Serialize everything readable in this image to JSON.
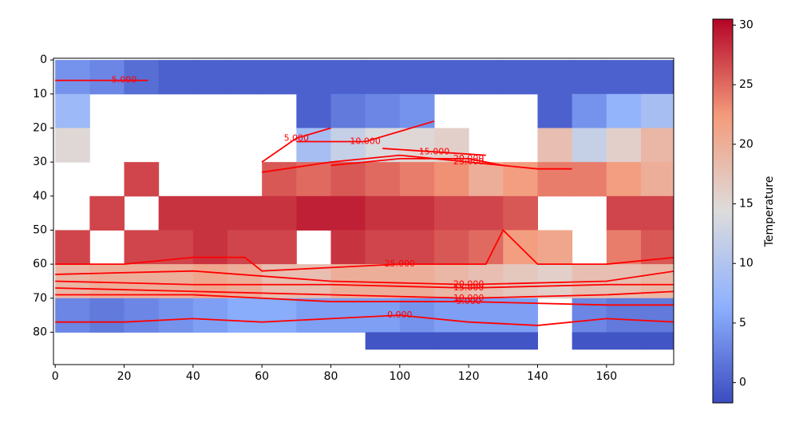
{
  "chart_data": {
    "type": "heatmap",
    "x_edges": [
      0,
      10,
      20,
      30,
      40,
      50,
      60,
      70,
      80,
      90,
      100,
      110,
      120,
      130,
      140,
      150,
      160,
      170,
      180
    ],
    "y_edges": [
      0,
      10,
      20,
      30,
      40,
      50,
      60,
      70,
      80,
      85
    ],
    "values": [
      [
        4,
        3,
        1,
        0,
        0,
        0,
        0,
        0,
        0,
        0,
        0,
        0,
        0,
        0,
        0,
        0,
        0,
        0
      ],
      [
        8,
        null,
        null,
        null,
        null,
        null,
        null,
        0,
        2,
        3,
        4,
        null,
        null,
        null,
        0,
        4,
        7,
        9
      ],
      [
        15,
        null,
        null,
        null,
        null,
        null,
        null,
        9,
        12,
        14,
        15,
        16,
        null,
        null,
        18,
        12,
        16,
        19
      ],
      [
        null,
        null,
        27,
        null,
        null,
        null,
        26,
        25,
        26,
        25,
        24,
        23,
        20,
        22,
        24,
        24,
        22,
        20
      ],
      [
        null,
        27,
        null,
        28,
        28,
        28,
        28,
        29,
        29,
        28,
        28,
        27,
        27,
        26,
        null,
        null,
        27,
        27
      ],
      [
        27,
        null,
        27,
        27,
        28,
        27,
        27,
        null,
        28,
        27,
        27,
        26,
        25,
        22,
        21,
        null,
        24,
        26
      ],
      [
        19,
        20,
        20,
        20,
        21,
        20,
        18,
        18,
        20,
        20,
        20,
        19,
        18,
        17,
        16,
        18,
        18,
        19
      ],
      [
        3,
        2,
        3,
        4,
        5,
        6,
        6,
        5,
        5,
        5,
        4,
        5,
        5,
        5,
        null,
        3,
        2,
        2
      ],
      [
        null,
        null,
        null,
        null,
        null,
        null,
        null,
        null,
        null,
        -1,
        -1,
        -1,
        -1,
        -1,
        null,
        -1,
        -1,
        -1
      ]
    ],
    "xlim": [
      -0.5,
      179.5
    ],
    "ylim": [
      89.5,
      -0.5
    ],
    "xticks": [
      0,
      20,
      40,
      60,
      80,
      100,
      120,
      140,
      160
    ],
    "yticks": [
      0,
      10,
      20,
      30,
      40,
      50,
      60,
      70,
      80
    ],
    "colormap": [
      "#3b4cc0",
      "#8db0fe",
      "#dddcdc",
      "#f49a7b",
      "#b40426"
    ],
    "clim": [
      -1.7,
      30.5
    ],
    "cticks": [
      0,
      5,
      10,
      15,
      20,
      25,
      30
    ],
    "colorbar_label": "Temperature",
    "contour_color": "#ff0000",
    "contours": [
      {
        "level": {
          "value": 0,
          "label": "0.000"
        },
        "x": [
          0,
          20,
          40,
          60,
          80,
          100,
          120,
          140,
          160,
          180
        ],
        "y": [
          77,
          77,
          76,
          77,
          76,
          75,
          77,
          78,
          76,
          77
        ]
      },
      {
        "level": {
          "value": 5,
          "label": "5.000"
        },
        "x": [
          0,
          40,
          80,
          120,
          160,
          180
        ],
        "y": [
          69,
          69,
          71,
          71,
          72,
          72
        ]
      },
      {
        "level": {
          "value": 10,
          "label": "10.000"
        },
        "x": [
          0,
          40,
          80,
          120,
          160,
          180
        ],
        "y": [
          67,
          68,
          69,
          70,
          69,
          68
        ]
      },
      {
        "level": {
          "value": 15,
          "label": "15.000"
        },
        "x": [
          0,
          40,
          80,
          120,
          160,
          180
        ],
        "y": [
          65,
          66,
          66,
          67,
          66,
          66
        ]
      },
      {
        "level": {
          "value": 20,
          "label": "20.000"
        },
        "x": [
          0,
          40,
          80,
          120,
          160,
          180
        ],
        "y": [
          63,
          62,
          65,
          66,
          65,
          62
        ]
      },
      {
        "level": {
          "value": 25,
          "label": "25.000"
        },
        "x": [
          0,
          20,
          40,
          55,
          60,
          80,
          100,
          120,
          125,
          130,
          140,
          160,
          180
        ],
        "y": [
          60,
          60,
          58,
          58,
          62,
          61,
          60,
          60,
          60,
          50,
          60,
          60,
          58
        ]
      },
      {
        "level": {
          "value": 25,
          "label": "25.000"
        },
        "x": [
          60,
          80,
          100,
          120,
          140,
          150
        ],
        "y": [
          33,
          30,
          28,
          30,
          32,
          32
        ]
      },
      {
        "level": {
          "value": 20,
          "label": "20.000"
        },
        "x": [
          80,
          100,
          120,
          130
        ],
        "y": [
          31,
          29,
          29,
          31
        ]
      },
      {
        "level": {
          "value": 15,
          "label": "15.000"
        },
        "x": [
          95,
          110,
          125
        ],
        "y": [
          26,
          27,
          28
        ]
      },
      {
        "level": {
          "value": 10,
          "label": "10.000"
        },
        "x": [
          70,
          90,
          110
        ],
        "y": [
          24,
          24,
          18
        ]
      },
      {
        "level": {
          "value": 5,
          "label": "5.000"
        },
        "x": [
          60,
          70,
          80
        ],
        "y": [
          30,
          23,
          20
        ]
      },
      {
        "level": {
          "value": 5,
          "label": "5.000"
        },
        "x": [
          0,
          20,
          27
        ],
        "y": [
          6,
          6,
          6
        ]
      }
    ]
  }
}
